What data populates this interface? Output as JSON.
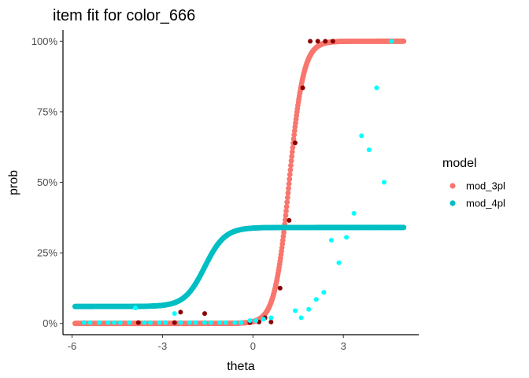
{
  "chart_data": {
    "type": "scatter",
    "title": "item fit for color_666",
    "xlabel": "theta",
    "ylabel": "prob",
    "xlim": [
      -6.3,
      5.5
    ],
    "ylim": [
      -0.04,
      1.04
    ],
    "x_ticks": [
      -6,
      -3,
      0,
      3
    ],
    "x_tick_labels": [
      "-6",
      "-3",
      "0",
      "3"
    ],
    "y_ticks": [
      0,
      0.25,
      0.5,
      0.75,
      1.0
    ],
    "y_tick_labels": [
      "0%",
      "25%",
      "50%",
      "75%",
      "100%"
    ],
    "grid": false,
    "legend": {
      "title": "model",
      "position": "right",
      "entries": [
        {
          "label": "mod_3pl",
          "color": "#F8766D"
        },
        {
          "label": "mod_4pl",
          "color": "#00BFC4"
        }
      ]
    },
    "series": [
      {
        "name": "mod_3pl",
        "kind": "model-curve",
        "color": "#F8766D",
        "params": {
          "a": 4.2,
          "b": 1.2,
          "lower": 0.0,
          "upper": 1.0
        },
        "x_range": [
          -5.9,
          5.0
        ]
      },
      {
        "name": "mod_4pl",
        "kind": "model-curve",
        "color": "#00BFC4",
        "params": {
          "a": 3.0,
          "b": -1.6,
          "lower": 0.06,
          "upper": 0.34
        },
        "x_range": [
          -5.9,
          5.0
        ]
      },
      {
        "kind": "observed",
        "color": "#8B0000",
        "points": [
          [
            -5.6,
            0.003
          ],
          [
            -3.8,
            0.003
          ],
          [
            -2.6,
            0.003
          ],
          [
            -2.4,
            0.04
          ],
          [
            -1.6,
            0.035
          ],
          [
            -0.1,
            0.003
          ],
          [
            0.2,
            0.005
          ],
          [
            0.4,
            0.02
          ],
          [
            0.6,
            0.005
          ],
          [
            0.9,
            0.125
          ],
          [
            1.2,
            0.365
          ],
          [
            1.4,
            0.64
          ],
          [
            1.65,
            0.835
          ],
          [
            1.9,
            1.0
          ],
          [
            2.15,
            1.0
          ],
          [
            2.4,
            1.0
          ],
          [
            2.65,
            1.0
          ]
        ]
      },
      {
        "kind": "observed",
        "color": "#00FFFF",
        "points": [
          [
            -5.6,
            0.003
          ],
          [
            -5.4,
            0.003
          ],
          [
            -5.1,
            0.003
          ],
          [
            -4.8,
            0.003
          ],
          [
            -4.6,
            0.003
          ],
          [
            -4.4,
            0.003
          ],
          [
            -4.1,
            0.003
          ],
          [
            -3.9,
            0.055
          ],
          [
            -3.6,
            0.003
          ],
          [
            -3.4,
            0.003
          ],
          [
            -3.1,
            0.003
          ],
          [
            -2.9,
            0.003
          ],
          [
            -2.6,
            0.035
          ],
          [
            -2.4,
            0.003
          ],
          [
            -2.1,
            0.003
          ],
          [
            -1.9,
            0.003
          ],
          [
            -1.6,
            0.003
          ],
          [
            -1.4,
            0.003
          ],
          [
            -1.1,
            0.003
          ],
          [
            -0.9,
            0.003
          ],
          [
            -0.6,
            0.003
          ],
          [
            -0.4,
            0.003
          ],
          [
            -0.1,
            0.01
          ],
          [
            0.1,
            0.01
          ],
          [
            0.35,
            0.015
          ],
          [
            0.6,
            0.02
          ],
          [
            1.4,
            0.045
          ],
          [
            1.6,
            0.02
          ],
          [
            1.85,
            0.05
          ],
          [
            2.1,
            0.085
          ],
          [
            2.35,
            0.11
          ],
          [
            2.6,
            0.295
          ],
          [
            2.85,
            0.215
          ],
          [
            3.1,
            0.305
          ],
          [
            3.35,
            0.39
          ],
          [
            3.6,
            0.665
          ],
          [
            3.85,
            0.615
          ],
          [
            4.1,
            0.835
          ],
          [
            4.35,
            0.5
          ],
          [
            4.6,
            1.0
          ]
        ]
      }
    ]
  }
}
